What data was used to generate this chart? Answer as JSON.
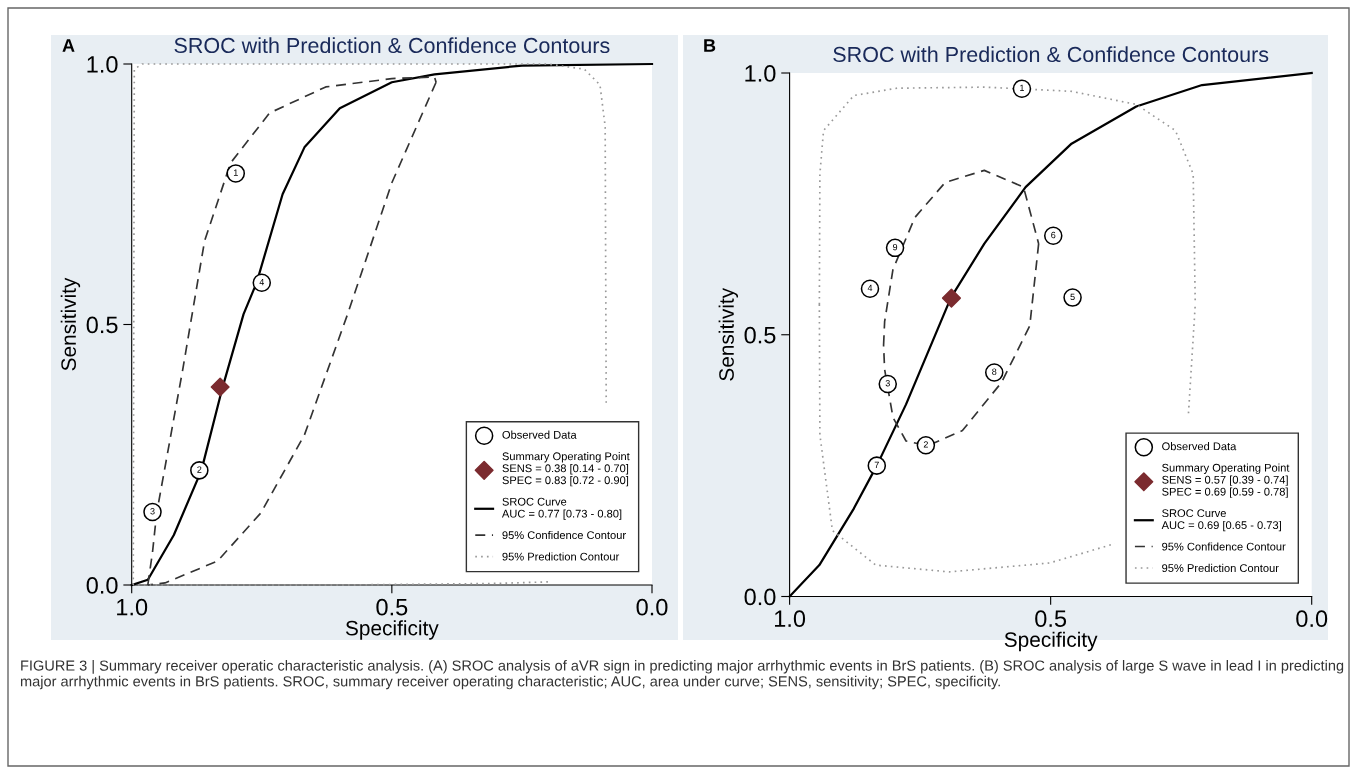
{
  "chart_data": [
    {
      "type": "scatter",
      "title": "SROC with Prediction & Confidence Contours",
      "xlabel": "Specificity",
      "ylabel": "Sensitivity",
      "xlim": [
        1.0,
        0.0
      ],
      "ylim": [
        0.0,
        1.0
      ],
      "xticks": [
        {
          "value": 1,
          "label": "1.0"
        },
        {
          "value": 0.5,
          "label": "0.5"
        },
        {
          "value": 0,
          "label": "0.0"
        }
      ],
      "yticks": [
        {
          "value": 0,
          "label": "0.0"
        },
        {
          "value": 0.5,
          "label": "0.5"
        },
        {
          "value": 1,
          "label": "1.0"
        }
      ],
      "legend": "bottom right",
      "series": [
        {
          "name": "Observed Data",
          "marker": "circle",
          "color": "#000000",
          "x": [
            0.8,
            0.87,
            0.96,
            0.75
          ],
          "values": [
            0.79,
            0.22,
            0.14,
            0.58
          ]
        },
        {
          "name": "Summary Operating Point\nSENS = 0.38 [0.14 - 0.70]\nSPEC = 0.83 [0.72 - 0.90]",
          "marker": "diamond",
          "color": "#7b2b2f",
          "x": [
            0.83
          ],
          "values": [
            0.38
          ]
        },
        {
          "name": "SROC Curve\nAUC = 0.77 [0.73 - 0.80]",
          "type": "line",
          "line_style": "solid",
          "color": "#000000",
          "x": [
            1.0,
            0.969,
            0.919,
            0.866,
            0.826,
            0.785,
            0.76,
            0.71,
            0.668,
            0.6,
            0.5,
            0.418,
            0.25,
            0.0
          ],
          "values": [
            0.0,
            0.01,
            0.096,
            0.22,
            0.377,
            0.52,
            0.58,
            0.75,
            0.84,
            0.915,
            0.965,
            0.98,
            0.997,
            1.0
          ]
        },
        {
          "name": "95% Confidence Contour",
          "type": "line",
          "line_style": "dashed",
          "color": "#333333",
          "x": [
            0.969,
            0.96,
            0.952,
            0.902,
            0.86,
            0.81,
            0.735,
            0.627,
            0.5,
            0.418,
            0.415,
            null,
            0.415,
            0.5,
            0.585,
            0.668,
            0.752,
            0.835,
            0.936,
            0.969
          ],
          "values": [
            0.0,
            0.063,
            0.138,
            0.413,
            0.66,
            0.81,
            0.906,
            0.956,
            0.972,
            0.975,
            0.965,
            null,
            0.965,
            0.772,
            0.52,
            0.288,
            0.138,
            0.046,
            0.004,
            0.0
          ]
        },
        {
          "name": "95% Prediction Contour",
          "type": "line",
          "line_style": "dotted",
          "color": "#999999",
          "x": [
            0.997,
            0.996,
            0.995,
            0.98,
            0.5,
            0.2,
            0.13,
            0.1,
            0.09,
            0.089,
            0.088,
            null,
            0.2,
            0.3,
            0.6,
            0.997
          ],
          "values": [
            0.0,
            0.5,
            0.99,
            1.0,
            1.0,
            1.0,
            0.99,
            0.96,
            0.88,
            0.6,
            0.35,
            null,
            0.006,
            0.003,
            0.0,
            0.0
          ]
        }
      ],
      "annotations": [
        "A",
        "FIGURE 3 | Summary receiver operatic characteristic analysis. (A) SROC analysis of aVR sign in predicting major arrhythmic events in BrS patients. (B) SROC analysis of large S wave in lead I in predicting major arrhythmic events in BrS patients. SROC, summary receiver operating characteristic; AUC, area under curve; SENS, sensitivity; SPEC, specificity.",
        {
          "text": "1",
          "x": 0.8,
          "y": 0.79
        },
        {
          "text": "2",
          "x": 0.87,
          "y": 0.22
        },
        {
          "text": "3",
          "x": 0.96,
          "y": 0.14
        },
        {
          "text": "4",
          "x": 0.75,
          "y": 0.58
        }
      ]
    },
    {
      "type": "scatter",
      "title": "SROC with Prediction & Confidence Contours",
      "xlabel": "Specificity",
      "ylabel": "Sensitivity",
      "xlim": [
        1.0,
        0.0
      ],
      "ylim": [
        0.0,
        1.0
      ],
      "xticks": [
        {
          "value": 1,
          "label": "1.0"
        },
        {
          "value": 0.5,
          "label": "0.5"
        },
        {
          "value": 0,
          "label": "0.0"
        }
      ],
      "yticks": [
        {
          "value": 0,
          "label": "0.0"
        },
        {
          "value": 0.5,
          "label": "0.5"
        },
        {
          "value": 1,
          "label": "1.0"
        }
      ],
      "legend": "bottom right",
      "series": [
        {
          "name": "Observed Data",
          "marker": "circle",
          "color": "#000000",
          "x": [
            0.555,
            0.739,
            0.812,
            0.846,
            0.458,
            0.495,
            0.833,
            0.608,
            0.798
          ],
          "values": [
            0.97,
            0.289,
            0.406,
            0.588,
            0.571,
            0.689,
            0.25,
            0.428,
            0.666
          ]
        },
        {
          "name": "Summary Operating Point\nSENS = 0.57 [0.39 - 0.74]\nSPEC = 0.69 [0.59 - 0.78]",
          "marker": "diamond",
          "color": "#7b2b2f",
          "x": [
            0.69
          ],
          "values": [
            0.57
          ]
        },
        {
          "name": "SROC Curve\nAUC = 0.69 [0.65 - 0.73]",
          "type": "line",
          "line_style": "solid",
          "color": "#000000",
          "x": [
            1.0,
            0.943,
            0.877,
            0.833,
            0.777,
            0.691,
            0.627,
            0.548,
            0.46,
            0.336,
            0.21,
            0.0
          ],
          "values": [
            0.0,
            0.06,
            0.168,
            0.25,
            0.367,
            0.571,
            0.674,
            0.782,
            0.865,
            0.936,
            0.977,
            1.0
          ]
        },
        {
          "name": "95% Confidence Contour",
          "type": "line",
          "line_style": "dashed",
          "color": "#333333",
          "x": [
            0.82,
            0.818,
            0.802,
            0.76,
            0.702,
            0.627,
            0.552,
            0.523,
            null,
            0.523,
            0.54,
            0.594,
            0.669,
            0.735,
            0.777,
            0.802,
            0.818,
            0.82
          ],
          "values": [
            0.48,
            0.525,
            0.625,
            0.724,
            0.791,
            0.814,
            0.782,
            0.674,
            null,
            0.674,
            0.517,
            0.409,
            0.317,
            0.288,
            0.297,
            0.342,
            0.434,
            0.48
          ]
        },
        {
          "name": "95% Prediction Contour",
          "type": "line",
          "line_style": "dotted",
          "color": "#999999",
          "x": [
            0.943,
            0.942,
            0.935,
            0.877,
            0.794,
            0.627,
            0.46,
            0.336,
            0.261,
            0.227,
            0.223,
            null,
            0.943,
            0.942,
            0.918,
            0.835,
            0.694,
            0.502,
            0.377,
            null,
            0.236,
            0.223
          ],
          "values": [
            0.558,
            0.807,
            0.89,
            0.957,
            0.971,
            0.973,
            0.965,
            0.94,
            0.89,
            0.807,
            0.558,
            null,
            0.558,
            0.309,
            0.126,
            0.06,
            0.047,
            0.064,
            0.101,
            null,
            0.35,
            0.558
          ]
        }
      ],
      "annotations": [
        "B",
        {
          "text": "1",
          "x": 0.555,
          "y": 0.97
        },
        {
          "text": "2",
          "x": 0.739,
          "y": 0.289
        },
        {
          "text": "3",
          "x": 0.812,
          "y": 0.406
        },
        {
          "text": "4",
          "x": 0.846,
          "y": 0.588
        },
        {
          "text": "5",
          "x": 0.458,
          "y": 0.571
        },
        {
          "text": "6",
          "x": 0.495,
          "y": 0.689
        },
        {
          "text": "7",
          "x": 0.833,
          "y": 0.25
        },
        {
          "text": "8",
          "x": 0.608,
          "y": 0.428
        },
        {
          "text": "9",
          "x": 0.798,
          "y": 0.666
        }
      ]
    }
  ]
}
